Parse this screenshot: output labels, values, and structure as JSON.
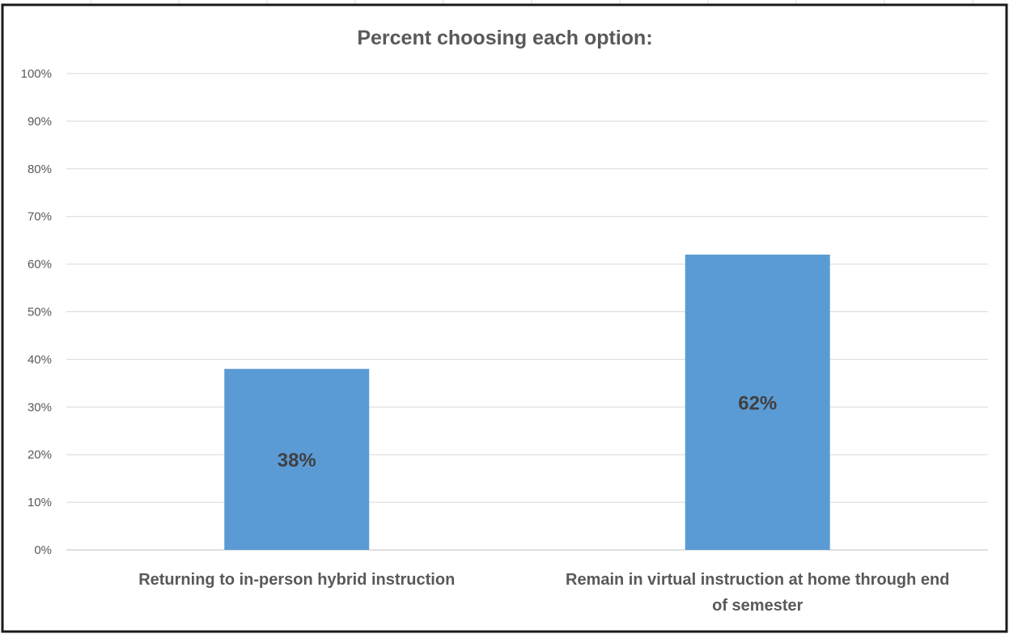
{
  "chart_data": {
    "type": "bar",
    "title": "Percent choosing each option:",
    "categories": [
      [
        "Returning to in-person hybrid instruction"
      ],
      [
        "Remain in virtual instruction at home through end",
        "of semester"
      ]
    ],
    "values": [
      38,
      62
    ],
    "data_labels": [
      "38%",
      "62%"
    ],
    "y_ticks": [
      "0%",
      "10%",
      "20%",
      "30%",
      "40%",
      "50%",
      "60%",
      "70%",
      "80%",
      "90%",
      "100%"
    ],
    "ylim": [
      0,
      100
    ],
    "grid": true,
    "legend": "none",
    "bar_color": "#5b9bd5"
  }
}
